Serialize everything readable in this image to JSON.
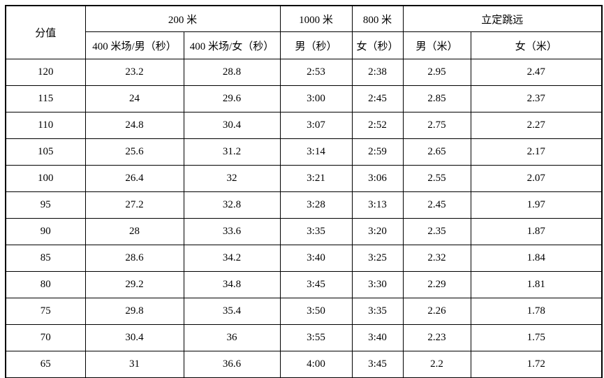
{
  "table": {
    "header": {
      "score_label": "分值",
      "groups": [
        {
          "label": "200 米"
        },
        {
          "label": "1000 米"
        },
        {
          "label": "800 米"
        },
        {
          "label": "立定跳远"
        }
      ],
      "subheaders": [
        "400 米场/男（秒）",
        "400 米场/女（秒）",
        "男（秒）",
        "女（秒）",
        "男（米）",
        "女（米）"
      ]
    },
    "rows": [
      [
        "120",
        "23.2",
        "28.8",
        "2:53",
        "2:38",
        "2.95",
        "2.47"
      ],
      [
        "115",
        "24",
        "29.6",
        "3:00",
        "2:45",
        "2.85",
        "2.37"
      ],
      [
        "110",
        "24.8",
        "30.4",
        "3:07",
        "2:52",
        "2.75",
        "2.27"
      ],
      [
        "105",
        "25.6",
        "31.2",
        "3:14",
        "2:59",
        "2.65",
        "2.17"
      ],
      [
        "100",
        "26.4",
        "32",
        "3:21",
        "3:06",
        "2.55",
        "2.07"
      ],
      [
        "95",
        "27.2",
        "32.8",
        "3:28",
        "3:13",
        "2.45",
        "1.97"
      ],
      [
        "90",
        "28",
        "33.6",
        "3:35",
        "3:20",
        "2.35",
        "1.87"
      ],
      [
        "85",
        "28.6",
        "34.2",
        "3:40",
        "3:25",
        "2.32",
        "1.84"
      ],
      [
        "80",
        "29.2",
        "34.8",
        "3:45",
        "3:30",
        "2.29",
        "1.81"
      ],
      [
        "75",
        "29.8",
        "35.4",
        "3:50",
        "3:35",
        "2.26",
        "1.78"
      ],
      [
        "70",
        "30.4",
        "36",
        "3:55",
        "3:40",
        "2.23",
        "1.75"
      ],
      [
        "65",
        "31",
        "36.6",
        "4:00",
        "3:45",
        "2.2",
        "1.72"
      ]
    ],
    "colors": {
      "border": "#000000",
      "background": "#ffffff",
      "text": "#000000"
    }
  }
}
